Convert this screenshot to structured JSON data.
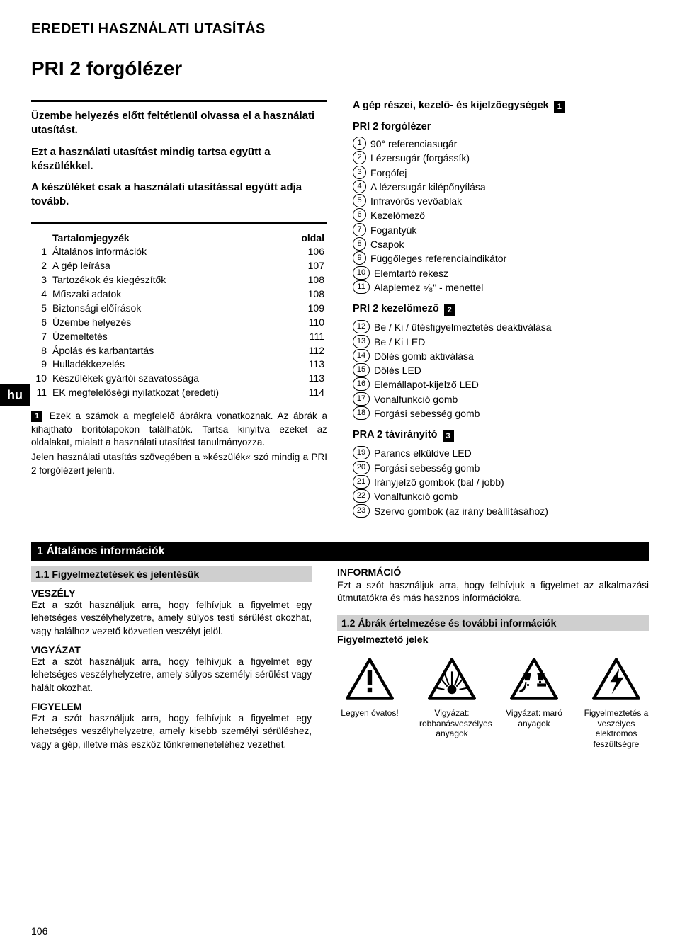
{
  "doc_type": "EREDETI HASZNÁLATI UTASÍTÁS",
  "product_title": "PRI 2 forgólézer",
  "lang_tab": "hu",
  "intro": [
    "Üzembe helyezés előtt feltétlenül olvassa el a használati utasítást.",
    "Ezt a használati utasítást mindig tartsa együtt a készülékkel.",
    "A készüléket csak a használati utasítással együtt adja tovább."
  ],
  "toc": {
    "header_title": "Tartalomjegyzék",
    "header_page": "oldal",
    "rows": [
      {
        "n": "1",
        "t": "Általános információk",
        "p": "106"
      },
      {
        "n": "2",
        "t": "A gép leírása",
        "p": "107"
      },
      {
        "n": "3",
        "t": "Tartozékok és kiegészítők",
        "p": "108"
      },
      {
        "n": "4",
        "t": "Műszaki adatok",
        "p": "108"
      },
      {
        "n": "5",
        "t": "Biztonsági előírások",
        "p": "109"
      },
      {
        "n": "6",
        "t": "Üzembe helyezés",
        "p": "110"
      },
      {
        "n": "7",
        "t": "Üzemeltetés",
        "p": "111"
      },
      {
        "n": "8",
        "t": "Ápolás és karbantartás",
        "p": "112"
      },
      {
        "n": "9",
        "t": "Hulladékkezelés",
        "p": "113"
      },
      {
        "n": "10",
        "t": "Készülékek gyártói szavatossága",
        "p": "113"
      },
      {
        "n": "11",
        "t": "EK megfelelőségi nyilatkozat (eredeti)",
        "p": "114"
      }
    ]
  },
  "note_paras": [
    "Ezek a számok a megfelelő ábrákra vonatkoznak. Az ábrák a kihajtható borítólapokon találhatók. Tartsa kinyitva ezeket az oldalakat, mialatt a használati utasítást tanulmányozza.",
    "Jelen használati utasítás szövegében a »készülék« szó mindig a PRI 2 forgólézert jelenti."
  ],
  "parts_header": "A gép részei, kezelő- és kijelzőegységek",
  "parts_sections": [
    {
      "title": "PRI 2 forgólézer",
      "badge": "",
      "items": [
        {
          "n": "1",
          "t": "90° referenciasugár"
        },
        {
          "n": "2",
          "t": "Lézersugár (forgássík)"
        },
        {
          "n": "3",
          "t": "Forgófej"
        },
        {
          "n": "4",
          "t": "A lézersugár kilépőnyílása"
        },
        {
          "n": "5",
          "t": "Infravörös vevőablak"
        },
        {
          "n": "6",
          "t": "Kezelőmező"
        },
        {
          "n": "7",
          "t": "Fogantyúk"
        },
        {
          "n": "8",
          "t": "Csapok"
        },
        {
          "n": "9",
          "t": "Függőleges referenciaindikátor"
        },
        {
          "n": "10",
          "t": "Elemtartó rekesz"
        },
        {
          "n": "11",
          "t": "Alaplemez ⁵⁄₈\"  - menettel"
        }
      ]
    },
    {
      "title": "PRI 2 kezelőmező",
      "badge": "2",
      "items": [
        {
          "n": "12",
          "t": "Be / Ki / ütésfigyelmeztetés deaktiválása"
        },
        {
          "n": "13",
          "t": "Be / Ki LED"
        },
        {
          "n": "14",
          "t": "Dőlés gomb aktiválása"
        },
        {
          "n": "15",
          "t": "Dőlés LED"
        },
        {
          "n": "16",
          "t": "Elemállapot-kijelző LED"
        },
        {
          "n": "17",
          "t": "Vonalfunkció gomb"
        },
        {
          "n": "18",
          "t": "Forgási sebesség gomb"
        }
      ]
    },
    {
      "title": "PRA 2 távirányító",
      "badge": "3",
      "items": [
        {
          "n": "19",
          "t": "Parancs elküldve LED"
        },
        {
          "n": "20",
          "t": "Forgási sebesség gomb"
        },
        {
          "n": "21",
          "t": "Irányjelző gombok (bal / jobb)"
        },
        {
          "n": "22",
          "t": "Vonalfunkció gomb"
        },
        {
          "n": "23",
          "t": "Szervo gombok (az irány beállításához)"
        }
      ]
    }
  ],
  "section1": {
    "bar": "1 Általános információk",
    "sub11": "1.1 Figyelmeztetések és jelentésük",
    "terms": [
      {
        "t": "VESZÉLY",
        "p": "Ezt a szót használjuk arra, hogy felhívjuk a figyelmet egy lehetséges veszélyhelyzetre, amely súlyos testi sérülést okozhat, vagy halálhoz vezető közvetlen veszélyt jelöl."
      },
      {
        "t": "VIGYÁZAT",
        "p": "Ezt a szót használjuk arra, hogy felhívjuk a figyelmet egy lehetséges veszélyhelyzetre, amely súlyos személyi sérülést vagy halált okozhat."
      },
      {
        "t": "FIGYELEM",
        "p": "Ezt a szót használjuk arra, hogy felhívjuk a figyelmet egy lehetséges veszélyhelyzetre, amely kisebb személyi sérüléshez, vagy a gép, illetve más eszköz tönkremeneteléhez vezethet."
      }
    ],
    "info_title": "INFORMÁCIÓ",
    "info_text": "Ezt a szót használjuk arra, hogy felhívjuk a figyelmet az alkalmazási útmutatókra és más hasznos információkra.",
    "sub12": "1.2 Ábrák értelmezése és további információk",
    "symbols_title": "Figyelmeztető jelek",
    "symbols": [
      {
        "label": "Legyen óvatos!",
        "svg": "exclaim"
      },
      {
        "label": "Vigyázat: robbanásveszélyes anyagok",
        "svg": "explosion"
      },
      {
        "label": "Vigyázat: maró anyagok",
        "svg": "corrosive"
      },
      {
        "label": "Figyelmeztetés a veszélyes elektromos feszültségre",
        "svg": "bolt"
      }
    ]
  },
  "page_number": "106"
}
